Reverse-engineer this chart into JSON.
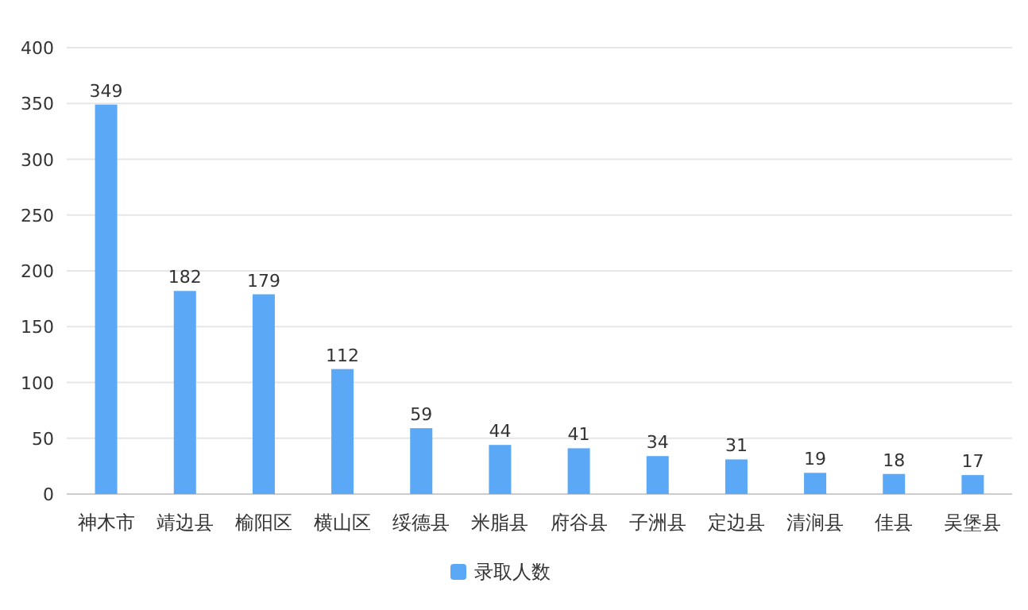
{
  "chart_data": {
    "type": "bar",
    "categories": [
      "神木市",
      "靖边县",
      "榆阳区",
      "横山区",
      "绥德县",
      "米脂县",
      "府谷县",
      "子洲县",
      "定边县",
      "清涧县",
      "佳县",
      "吴堡县"
    ],
    "series": [
      {
        "name": "录取人数",
        "color": "#5ba8f7",
        "values": [
          349,
          182,
          179,
          112,
          59,
          44,
          41,
          34,
          31,
          19,
          18,
          17
        ]
      }
    ],
    "ylim": [
      0,
      400
    ],
    "yticks": [
      0,
      50,
      100,
      150,
      200,
      250,
      300,
      350,
      400
    ],
    "grid": "y",
    "legend": "bottom",
    "data_labels": true
  }
}
